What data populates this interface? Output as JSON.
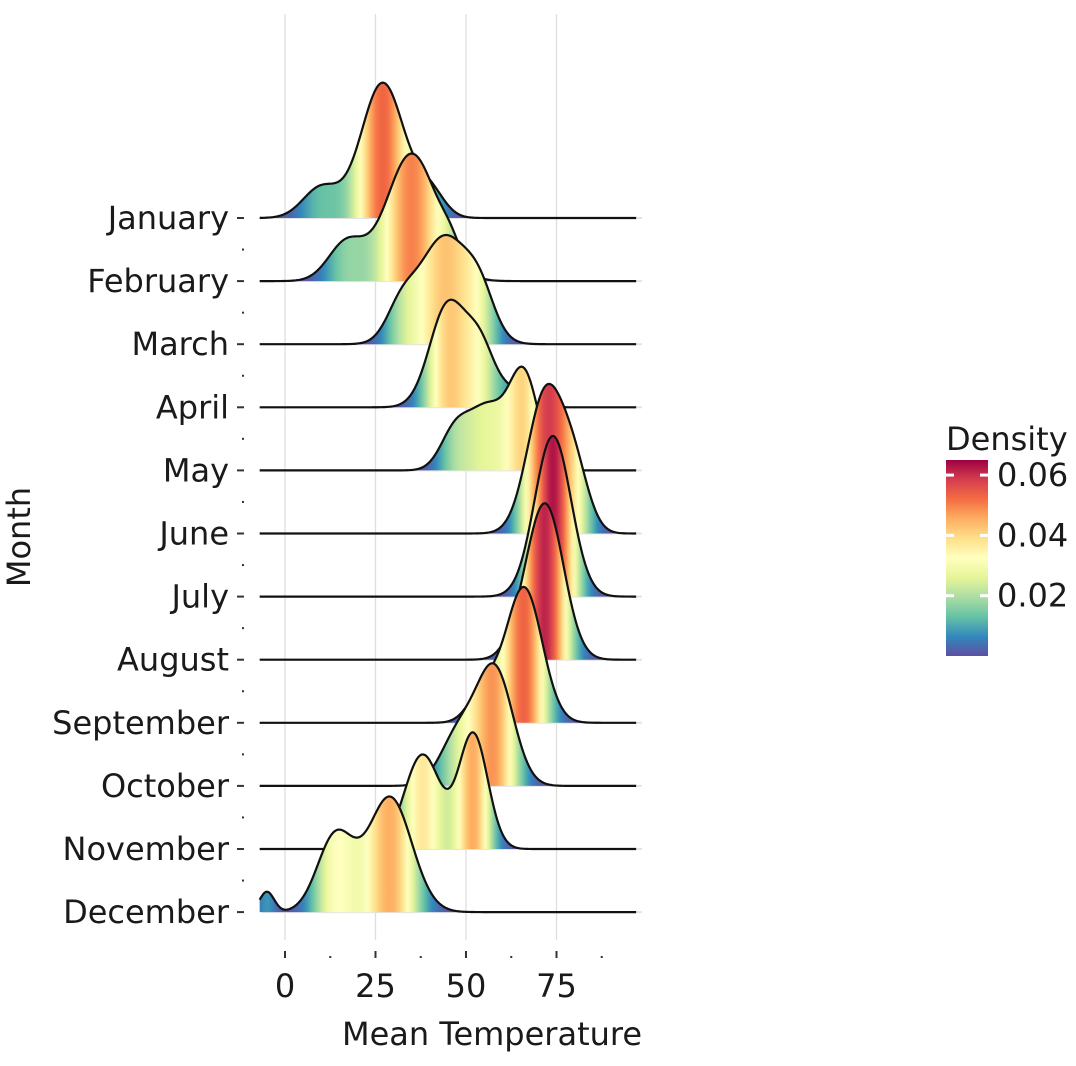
{
  "chart_data": {
    "type": "ridgeline",
    "title": "",
    "xlabel": "Mean Temperature",
    "ylabel": "Month",
    "xlim": [
      -7,
      97
    ],
    "x_ticks": [
      0,
      25,
      50,
      75
    ],
    "x_tick_labels": [
      "0",
      "25",
      "50",
      "75"
    ],
    "grid": true,
    "legend": {
      "title": "Density",
      "placement": "right",
      "ticks": [
        0.02,
        0.04,
        0.06
      ],
      "tick_labels": [
        "0.02",
        "0.04",
        "0.06"
      ],
      "range": [
        0,
        0.065
      ]
    },
    "colormap": [
      "#5e4fa2",
      "#3288bd",
      "#66c2a5",
      "#abdda4",
      "#e6f598",
      "#ffffbf",
      "#fee08b",
      "#fdae61",
      "#f46d43",
      "#d53e4f",
      "#9e0142"
    ],
    "categories": [
      "January",
      "February",
      "March",
      "April",
      "May",
      "June",
      "July",
      "August",
      "September",
      "October",
      "November",
      "December"
    ],
    "series": [
      {
        "name": "January",
        "components": [
          [
            10,
            5,
            0.012
          ],
          [
            27,
            6,
            0.053
          ],
          [
            40,
            4,
            0.01
          ]
        ]
      },
      {
        "name": "February",
        "components": [
          [
            17,
            5,
            0.015
          ],
          [
            35,
            7,
            0.05
          ],
          [
            46,
            3,
            0.007
          ]
        ]
      },
      {
        "name": "March",
        "components": [
          [
            32,
            4,
            0.012
          ],
          [
            44,
            7,
            0.042
          ],
          [
            54,
            4,
            0.014
          ]
        ]
      },
      {
        "name": "April",
        "components": [
          [
            45,
            5,
            0.04
          ],
          [
            54,
            4,
            0.022
          ],
          [
            63,
            4,
            0.006
          ]
        ]
      },
      {
        "name": "May",
        "components": [
          [
            47,
            4,
            0.015
          ],
          [
            56,
            5,
            0.024
          ],
          [
            66,
            4,
            0.037
          ]
        ]
      },
      {
        "name": "June",
        "components": [
          [
            72,
            5,
            0.055
          ],
          [
            80,
            4,
            0.022
          ]
        ]
      },
      {
        "name": "July",
        "components": [
          [
            74,
            5,
            0.063
          ]
        ]
      },
      {
        "name": "August",
        "components": [
          [
            65,
            4,
            0.006
          ],
          [
            72,
            5,
            0.06
          ]
        ]
      },
      {
        "name": "September",
        "components": [
          [
            55,
            4,
            0.013
          ],
          [
            66,
            5,
            0.053
          ]
        ]
      },
      {
        "name": "October",
        "components": [
          [
            48,
            5,
            0.02
          ],
          [
            58,
            5,
            0.045
          ]
        ]
      },
      {
        "name": "November",
        "components": [
          [
            38,
            5,
            0.037
          ],
          [
            52,
            4,
            0.045
          ]
        ]
      },
      {
        "name": "December",
        "components": [
          [
            -5,
            2,
            0.008
          ],
          [
            14,
            5,
            0.03
          ],
          [
            29,
            6,
            0.045
          ]
        ]
      }
    ]
  }
}
